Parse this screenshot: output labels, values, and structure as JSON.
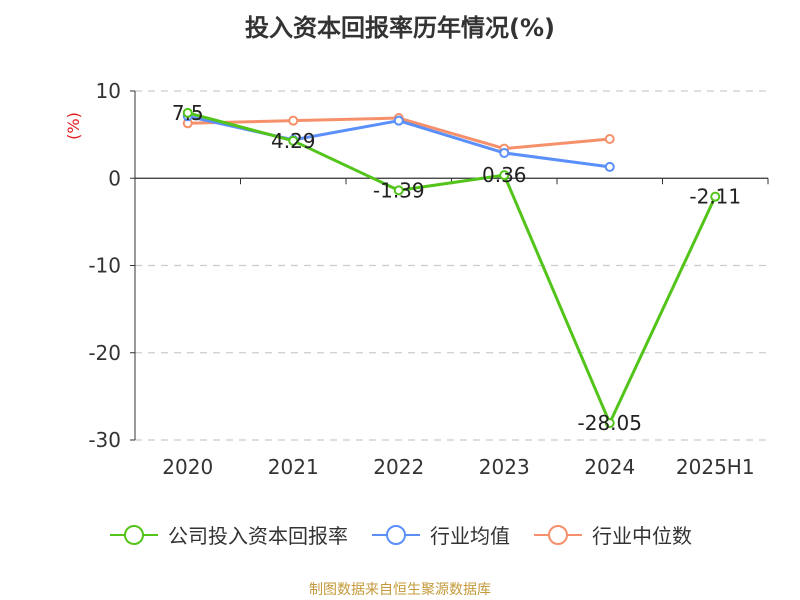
{
  "title": "投入资本回报率历年情况(%)",
  "source": "制图数据来自恒生聚源数据库",
  "colors": {
    "company": "#52c41a",
    "industry_avg": "#5b8ff9",
    "industry_median": "#f6906b"
  },
  "chart_data": {
    "type": "line",
    "title": "投入资本回报率历年情况(%)",
    "xlabel": "",
    "ylabel": "(%)",
    "ylim": [
      -30,
      10
    ],
    "yticks": [
      10,
      0,
      -10,
      -20,
      -30
    ],
    "grid": true,
    "legend_position": "bottom",
    "categories": [
      "2020",
      "2021",
      "2022",
      "2023",
      "2024",
      "2025H1"
    ],
    "series": [
      {
        "name": "公司投入资本回报率",
        "color": "#52c41a",
        "values": [
          7.5,
          4.29,
          -1.39,
          0.36,
          -28.05,
          -2.11
        ],
        "labels": [
          "7.5",
          "4.29",
          "-1.39",
          "0.36",
          "-28.05",
          "-2.11"
        ]
      },
      {
        "name": "行业均值",
        "color": "#5b8ff9",
        "values": [
          7.1,
          4.4,
          6.6,
          2.9,
          1.3,
          null
        ]
      },
      {
        "name": "行业中位数",
        "color": "#f6906b",
        "values": [
          6.3,
          6.6,
          6.9,
          3.4,
          4.5,
          null
        ]
      }
    ]
  }
}
